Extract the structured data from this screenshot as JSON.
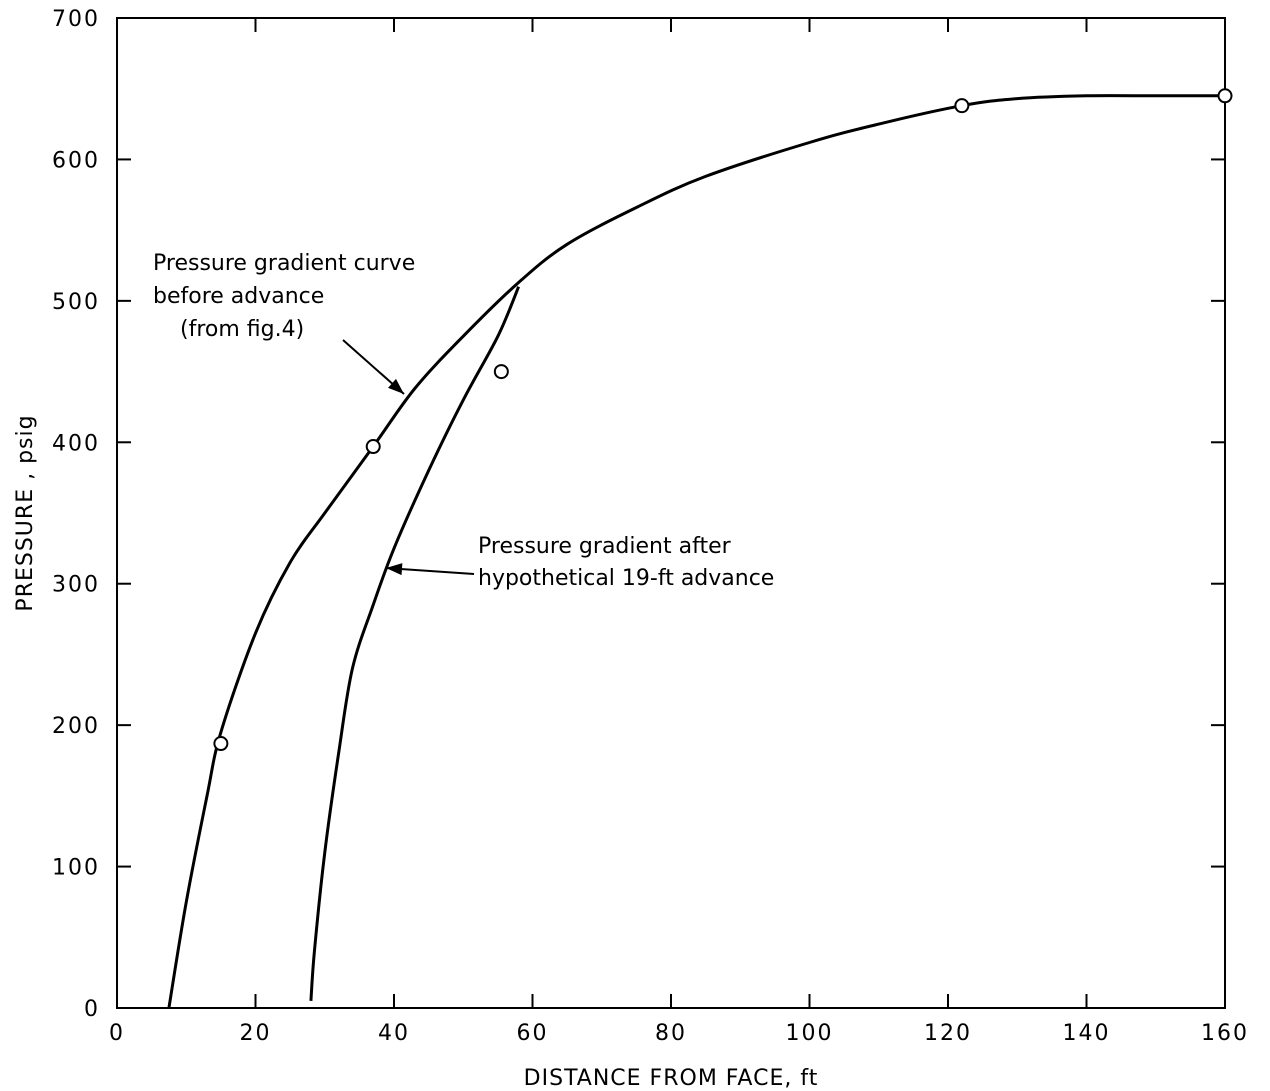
{
  "chart_data": {
    "type": "line",
    "xlabel": "DISTANCE FROM FACE,  ft",
    "ylabel": "PRESSURE , psig",
    "xlim": [
      0,
      160
    ],
    "ylim": [
      0,
      700
    ],
    "x_ticks": [
      0,
      20,
      40,
      60,
      80,
      100,
      120,
      140,
      160
    ],
    "y_ticks": [
      0,
      100,
      200,
      300,
      400,
      500,
      600,
      700
    ],
    "grid": false,
    "series": [
      {
        "values": [
          [
            7.5,
            0
          ],
          [
            10,
            75
          ],
          [
            13,
            150
          ],
          [
            15,
            195
          ],
          [
            20,
            265
          ],
          [
            25,
            315
          ],
          [
            30,
            350
          ],
          [
            37,
            397
          ],
          [
            43,
            438
          ],
          [
            50,
            475
          ],
          [
            58,
            513
          ],
          [
            65,
            540
          ],
          [
            75,
            566
          ],
          [
            85,
            588
          ],
          [
            100,
            612
          ],
          [
            110,
            625
          ],
          [
            122,
            638
          ],
          [
            130,
            643
          ],
          [
            140,
            645
          ],
          [
            150,
            645
          ],
          [
            160,
            645
          ]
        ]
      },
      {
        "values": [
          [
            28,
            5
          ],
          [
            28.5,
            40
          ],
          [
            30,
            110
          ],
          [
            32,
            180
          ],
          [
            34,
            240
          ],
          [
            37,
            285
          ],
          [
            40,
            325
          ],
          [
            45,
            380
          ],
          [
            50,
            430
          ],
          [
            55,
            475
          ],
          [
            58,
            510
          ]
        ]
      }
    ],
    "points": [
      [
        15,
        187
      ],
      [
        37,
        397
      ],
      [
        55.5,
        450
      ],
      [
        122,
        638
      ],
      [
        160,
        645
      ]
    ],
    "annotations": [
      {
        "lines": [
          "Pressure gradient curve",
          "before advance",
          "(from fig.4)"
        ]
      },
      {
        "lines": [
          "Pressure gradient after",
          "hypothetical 19-ft advance"
        ]
      }
    ]
  }
}
